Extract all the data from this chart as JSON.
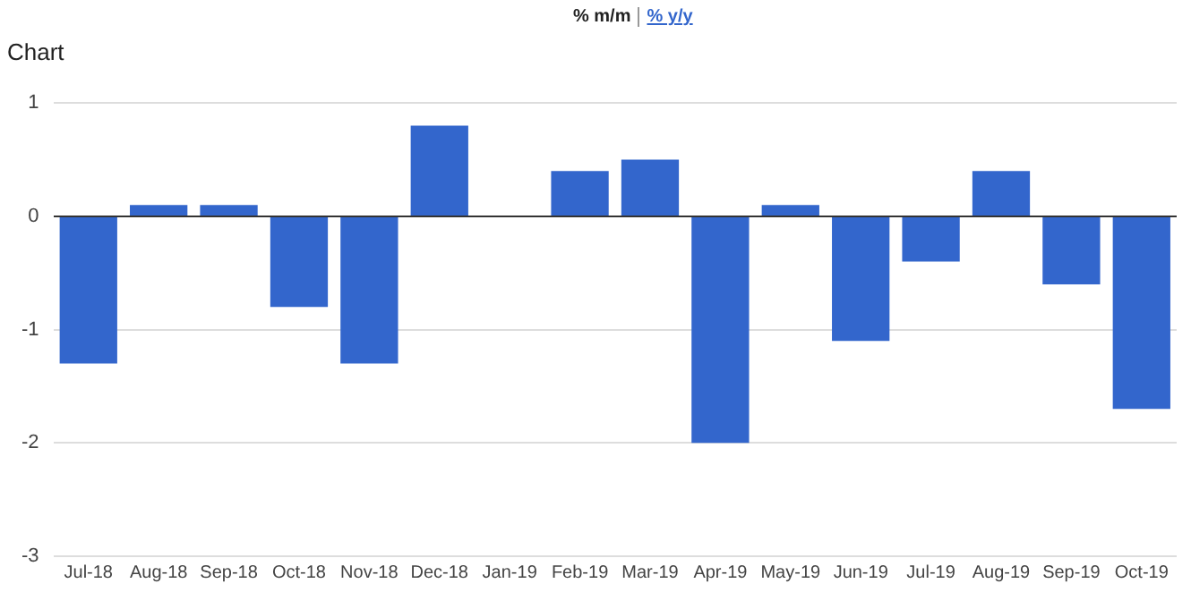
{
  "chart_data": {
    "type": "bar",
    "title": "Chart",
    "annotations": [
      "% m/m",
      "% y/y"
    ],
    "categories": [
      "Jul-18",
      "Aug-18",
      "Sep-18",
      "Oct-18",
      "Nov-18",
      "Dec-18",
      "Jan-19",
      "Feb-19",
      "Mar-19",
      "Apr-19",
      "May-19",
      "Jun-19",
      "Jul-19",
      "Aug-19",
      "Sep-19",
      "Oct-19"
    ],
    "values": [
      -1.3,
      0.1,
      0.1,
      -0.8,
      -1.3,
      0.8,
      0,
      0.4,
      0.5,
      -2.0,
      0.1,
      -1.1,
      -0.4,
      0.4,
      -0.6,
      -1.7
    ],
    "color": "#3366cc",
    "ylim": [
      -3,
      1
    ],
    "yticks": [
      -3,
      -2,
      -1,
      0,
      1
    ],
    "grid": "y",
    "legend": false
  }
}
